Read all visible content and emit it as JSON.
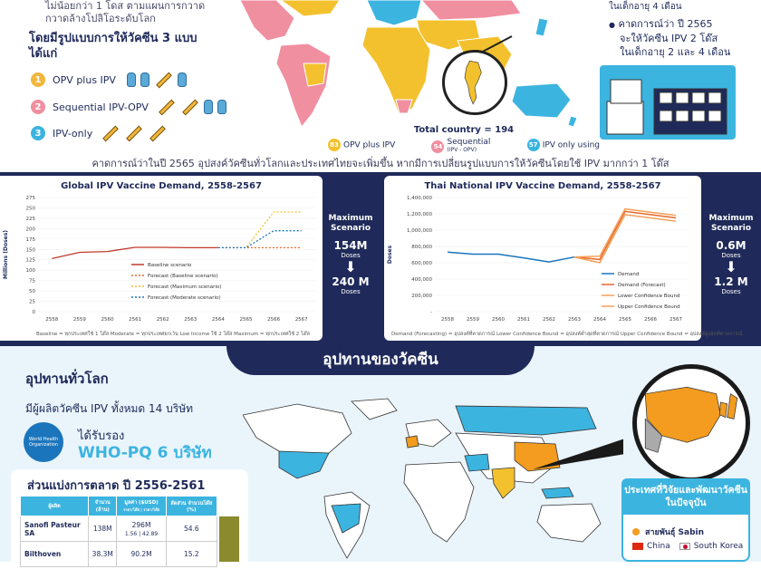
{
  "top": {
    "intro_lines": [
      "ไม่น้อยกว่า 1 โดส ตามแผนการกวาด",
      "กวาดล้างโปลิโอระดับโลก"
    ],
    "scheme_title": "โดยมีรูปแบบการให้วัคซีน 3 แบบ ได้แก่",
    "schemes": [
      {
        "num": "1",
        "label": "OPV plus IPV",
        "color": "#f3b63d"
      },
      {
        "num": "2",
        "label": "Sequential IPV-OPV",
        "color": "#f08fa0"
      },
      {
        "num": "3",
        "label": "IPV-only",
        "color": "#3cb4e0"
      }
    ],
    "map_total": "Total country = 194",
    "map_legend": [
      {
        "count": "83",
        "label": "OPV plus IPV",
        "color": "#f3c12e"
      },
      {
        "count": "54",
        "label": "Sequential",
        "sublabel": "(IPV - OPV)",
        "color": "#f08fa0"
      },
      {
        "count": "57",
        "label": "IPV only using",
        "color": "#3cb4e0"
      }
    ],
    "right_note_top": "ในเด็กอายุ 4 เดือน",
    "right_note_lines": [
      "คาดการณ์ว่า ปี 2565",
      "จะให้วัคซีน IPV 2 โด๊ส",
      "ในเด็กอายุ 2 และ 4 เดือน"
    ],
    "caption": "คาดการณ์ว่าในปี 2565 อุปสงค์วัคซีนทั่วโลกและประเทศไทยจะเพิ่มขึ้น หากมีการเปลี่ยนรูปแบบการให้วัคซีนโดยใช้ IPV มากกว่า 1 โด๊ส"
  },
  "global_chart": {
    "title": "Global IPV Vaccine Demand, 2558-2567",
    "ylabel": "Millions (Doses)",
    "footnote": "Baseline = ทุกประเทศใช้ 1 โด๊ส Moderate = ทุกประเทศยกเว้น Low Income ใช้ 2 โด๊ส Maximum = ทุกประเทศใช้ 2 โด๊ส",
    "scenario_title": "Maximum Scenario",
    "from_value": "154M",
    "to_value": "240 M",
    "unit": "Doses"
  },
  "thai_chart": {
    "title": "Thai National IPV Vaccine Demand, 2558-2567",
    "ylabel": "Doses",
    "footnote": "Demand (Forecasting) = อุปสงค์ที่คาดการณ์ Lower Confidence Bound = อุปสงค์ต่ำสุดที่คาดการณ์ Upper Confidence Bound = อุปสงค์สูงสุดที่คาดการณ์",
    "scenario_title": "Maximum Scenario",
    "from_value": "0.6M",
    "to_value": "1.2 M",
    "unit": "Doses"
  },
  "chart_data": [
    {
      "type": "line",
      "title": "Global IPV Vaccine Demand, 2558-2567",
      "xlabel": "",
      "ylabel": "Millions (Doses)",
      "x": [
        "2558",
        "2559",
        "2560",
        "2561",
        "2562",
        "2563",
        "2564",
        "2565",
        "2566",
        "2567"
      ],
      "yticks": [
        0,
        25,
        50,
        75,
        100,
        125,
        150,
        175,
        200,
        225,
        250,
        275
      ],
      "ylim": [
        0,
        275
      ],
      "series": [
        {
          "name": "Baseline scenario",
          "color": "#c0392b",
          "dash": "",
          "values": [
            128,
            143,
            145,
            155,
            155,
            154,
            154,
            null,
            null,
            null
          ]
        },
        {
          "name": "Forecast (Baseline scenario)",
          "color": "#e8692a",
          "dash": "2,2",
          "values": [
            null,
            null,
            null,
            null,
            null,
            null,
            154,
            154,
            154,
            154
          ]
        },
        {
          "name": "Forecast (Maximum scenario)",
          "color": "#f3c12e",
          "dash": "2,2",
          "values": [
            null,
            null,
            null,
            null,
            null,
            null,
            154,
            154,
            240,
            240
          ]
        },
        {
          "name": "Forecast (Moderate scenario)",
          "color": "#1b75bc",
          "dash": "2,2",
          "values": [
            null,
            null,
            null,
            null,
            null,
            null,
            154,
            154,
            195,
            195
          ]
        }
      ],
      "legend": "bottom-right"
    },
    {
      "type": "line",
      "title": "Thai National IPV Vaccine Demand, 2558-2567",
      "xlabel": "",
      "ylabel": "Doses",
      "x": [
        "2558",
        "2559",
        "2560",
        "2561",
        "2562",
        "2563",
        "2564",
        "2565",
        "2566",
        "2567"
      ],
      "yticks": [
        0,
        200000,
        400000,
        600000,
        800000,
        1000000,
        1200000,
        1400000
      ],
      "ytick_labels": [
        "-",
        "200,000",
        "400,000",
        "600,000",
        "800,000",
        "1,000,000",
        "1,200,000",
        "1,400,000"
      ],
      "ylim": [
        0,
        1400000
      ],
      "series": [
        {
          "name": "Demand",
          "color": "#1b75bc",
          "values": [
            730000,
            705000,
            705000,
            660000,
            610000,
            670000,
            null,
            null,
            null,
            null
          ]
        },
        {
          "name": "Demand (Forecast)",
          "color": "#e8692a",
          "values": [
            null,
            null,
            null,
            null,
            null,
            670000,
            640000,
            1230000,
            1190000,
            1150000
          ]
        },
        {
          "name": "Lower Confidence Bound",
          "color": "#f4a15a",
          "values": [
            null,
            null,
            null,
            null,
            null,
            670000,
            600000,
            1190000,
            1150000,
            1110000
          ]
        },
        {
          "name": "Upper Confidence Bound",
          "color": "#f4a15a",
          "values": [
            null,
            null,
            null,
            null,
            null,
            670000,
            680000,
            1260000,
            1220000,
            1180000
          ]
        }
      ],
      "legend": "bottom-right"
    }
  ],
  "bottom": {
    "section_title": "อุปทานของวัคซีน",
    "global_title": "อุปทานทั่วโลก",
    "makers": "มีผู้ผลิตวัคซีน IPV ทั้งหมด 14 บริษัท",
    "who_logo_text": "World Health Organization",
    "certified": "ได้รับรอง",
    "who_pq": "WHO-PQ 6 บริษัท",
    "share_title": "ส่วนแบ่งการตลาด ปี 2556-2561",
    "table_headers": [
      "ผู้ผลิต",
      "จำนวน (ล้าน)",
      "มูลค่า ($USD)",
      "สัดส่วน จำนวนโด๊ส (%)"
    ],
    "table_header_subs": [
      "",
      "",
      "ราคา/โด๊ส | ราคา/โด๊ส",
      ""
    ],
    "table_rows": [
      {
        "company": "Sanofi Pasteur SA",
        "amount": "138M",
        "value": "296M",
        "value_sub": "1.56 | 42.89",
        "share": "54.6"
      },
      {
        "company": "Bilthoven",
        "amount": "38.3M",
        "value": "90.2M",
        "value_sub": "",
        "share": "15.2"
      }
    ],
    "rd_title": "ประเทศที่วิจัยและพัฒนาวัคซีนในปัจจุบัน",
    "rd_strain": "สายพันธุ์ Sabin",
    "rd_countries": [
      "China",
      "South Korea"
    ]
  }
}
